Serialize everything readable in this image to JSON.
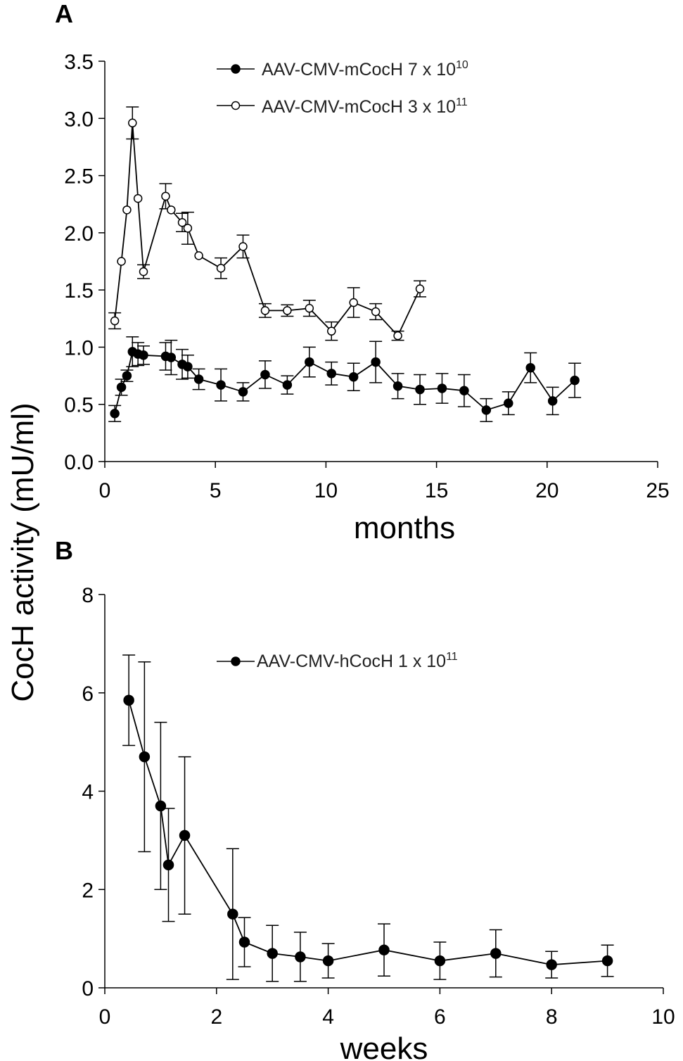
{
  "figure": {
    "shared_ylabel": "CocH activity  (mU/ml)"
  },
  "chart_data": [
    {
      "panel": "A",
      "type": "line",
      "xlabel": "months",
      "ylabel": "CocH activity  (mU/ml)",
      "xlim": [
        0,
        25
      ],
      "ylim": [
        0,
        3.5
      ],
      "xticks": [
        0,
        5,
        10,
        15,
        20,
        25
      ],
      "yticks": [
        "0.0",
        "0.5",
        "1.0",
        "1.5",
        "2.0",
        "2.5",
        "3.0",
        "3.5"
      ],
      "legend_position": "top-center",
      "series": [
        {
          "name": "AAV-CMV-mCocH  7 x 10",
          "superscript": "10",
          "marker": "filled-circle",
          "x": [
            0.45,
            0.75,
            1.0,
            1.25,
            1.5,
            1.75,
            2.75,
            3.0,
            3.5,
            3.75,
            4.25,
            5.25,
            6.25,
            7.25,
            8.25,
            9.25,
            10.25,
            11.25,
            12.25,
            13.25,
            14.25,
            15.25,
            16.25,
            17.25,
            18.25,
            19.25,
            20.25,
            21.25
          ],
          "values": [
            0.42,
            0.65,
            0.75,
            0.96,
            0.94,
            0.93,
            0.92,
            0.91,
            0.85,
            0.83,
            0.72,
            0.67,
            0.61,
            0.76,
            0.67,
            0.87,
            0.77,
            0.74,
            0.87,
            0.66,
            0.63,
            0.64,
            0.62,
            0.45,
            0.51,
            0.82,
            0.53,
            0.71
          ],
          "errors": [
            0.07,
            0.07,
            0.05,
            0.13,
            0.1,
            0.08,
            0.12,
            0.15,
            0.13,
            0.1,
            0.09,
            0.14,
            0.08,
            0.12,
            0.08,
            0.13,
            0.1,
            0.12,
            0.18,
            0.11,
            0.13,
            0.13,
            0.14,
            0.1,
            0.1,
            0.13,
            0.12,
            0.15
          ]
        },
        {
          "name": "AAV-CMV-mCocH  3 x 10",
          "superscript": "11",
          "marker": "open-circle",
          "x": [
            0.45,
            0.75,
            1.0,
            1.25,
            1.5,
            1.75,
            2.75,
            3.0,
            3.5,
            3.75,
            4.25,
            5.25,
            6.25,
            7.25,
            8.25,
            9.25,
            10.25,
            11.25,
            12.25,
            13.25,
            14.25
          ],
          "values": [
            1.23,
            1.75,
            2.2,
            2.96,
            2.3,
            1.66,
            2.32,
            2.2,
            2.09,
            2.04,
            1.8,
            1.69,
            1.88,
            1.32,
            1.32,
            1.34,
            1.14,
            1.39,
            1.31,
            1.1,
            1.51
          ],
          "errors": [
            0.07,
            0.0,
            0.0,
            0.14,
            0.0,
            0.06,
            0.11,
            0.0,
            0.08,
            0.14,
            0.0,
            0.09,
            0.1,
            0.06,
            0.05,
            0.07,
            0.08,
            0.13,
            0.07,
            0.04,
            0.07
          ]
        }
      ]
    },
    {
      "panel": "B",
      "type": "line",
      "xlabel": "weeks",
      "ylabel": "CocH activity  (mU/ml)",
      "xlim": [
        0,
        10
      ],
      "ylim": [
        0,
        8
      ],
      "xticks": [
        0,
        2,
        4,
        6,
        8,
        10
      ],
      "yticks": [
        "0",
        "2",
        "4",
        "6",
        "8"
      ],
      "legend_position": "top-center",
      "series": [
        {
          "name": "AAV-CMV-hCocH  1 x 10",
          "superscript": "11",
          "marker": "filled-circle",
          "x": [
            0.43,
            0.71,
            1.0,
            1.14,
            1.43,
            2.29,
            2.5,
            3.0,
            3.5,
            4.0,
            5.0,
            6.0,
            7.0,
            8.0,
            9.0
          ],
          "values": [
            5.85,
            4.7,
            3.7,
            2.5,
            3.1,
            1.5,
            0.93,
            0.7,
            0.63,
            0.55,
            0.77,
            0.55,
            0.7,
            0.47,
            0.55
          ],
          "errors": [
            0.92,
            1.93,
            1.7,
            1.15,
            1.6,
            1.33,
            0.5,
            0.57,
            0.5,
            0.35,
            0.53,
            0.38,
            0.48,
            0.27,
            0.32
          ]
        }
      ]
    }
  ]
}
